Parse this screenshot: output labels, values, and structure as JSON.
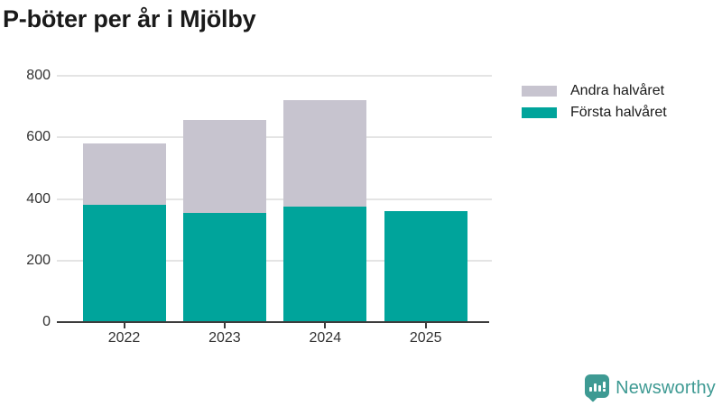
{
  "title": "P-böter per år i Mjölby",
  "chart_data": {
    "type": "bar",
    "stacked": true,
    "title": "P-böter per år i Mjölby",
    "categories": [
      "2022",
      "2023",
      "2024",
      "2025"
    ],
    "series": [
      {
        "name": "Första halvåret",
        "color": "#00a49b",
        "values": [
          380,
          355,
          375,
          360
        ]
      },
      {
        "name": "Andra halvåret",
        "color": "#c7c4cf",
        "values": [
          200,
          300,
          345,
          0
        ]
      }
    ],
    "stack_totals": [
      580,
      655,
      720,
      360
    ],
    "xlabel": "",
    "ylabel": "",
    "ylim": [
      0,
      800
    ],
    "yticks": [
      0,
      200,
      400,
      600,
      800
    ],
    "grid": true,
    "legend_position": "top-right"
  },
  "legend": {
    "items": [
      {
        "label": "Andra halvåret",
        "color": "#c7c4cf"
      },
      {
        "label": "Första halvåret",
        "color": "#00a49b"
      }
    ]
  },
  "footer": {
    "brand_label": "Newsworthy",
    "logo_icon": "bar-chart-speech-bubble-icon",
    "brand_color": "#3e9a93"
  },
  "colors": {
    "first_half": "#00a49b",
    "second_half": "#c7c4cf",
    "grid": "#e4e4e4",
    "axis": "#3c3c3c",
    "tick_text": "#333333",
    "title_text": "#1a1a1a",
    "background": "#ffffff"
  }
}
